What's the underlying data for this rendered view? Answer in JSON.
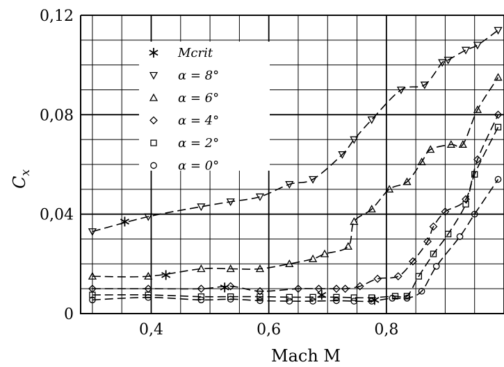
{
  "chart_data": {
    "type": "scatter",
    "xlabel": "Mach M",
    "ylabel": "C_x",
    "xlim": [
      0.28,
      1.0
    ],
    "ylim": [
      0,
      0.12
    ],
    "x_ticks": [
      0.4,
      0.6,
      0.8
    ],
    "x_tick_labels": [
      "0,4",
      "0,6",
      "0,8"
    ],
    "y_ticks": [
      0,
      0.04,
      0.08,
      0.12
    ],
    "y_tick_labels": [
      "0",
      "0,04",
      "0,08",
      "0,12"
    ],
    "grid": true,
    "legend_position": "top-left",
    "series": [
      {
        "name": "M_crit",
        "legend_label": "Mcrit",
        "marker": "asterisk",
        "line": false,
        "x": [
          0.355,
          0.425,
          0.525,
          0.69,
          0.78
        ],
        "y": [
          0.037,
          0.0155,
          0.0105,
          0.0075,
          0.0055
        ]
      },
      {
        "name": "α = 8°",
        "legend_label": "α = 8°",
        "marker": "triangle-down",
        "line": true,
        "x": [
          0.3,
          0.395,
          0.485,
          0.535,
          0.585,
          0.635,
          0.675,
          0.725,
          0.745,
          0.775,
          0.825,
          0.865,
          0.895,
          0.905,
          0.935,
          0.955,
          0.99
        ],
        "y": [
          0.033,
          0.039,
          0.043,
          0.045,
          0.047,
          0.052,
          0.054,
          0.064,
          0.07,
          0.078,
          0.09,
          0.092,
          0.101,
          0.102,
          0.106,
          0.108,
          0.114
        ]
      },
      {
        "name": "α = 6°",
        "legend_label": "α = 6°",
        "marker": "triangle-up",
        "line": true,
        "x": [
          0.3,
          0.395,
          0.485,
          0.535,
          0.585,
          0.635,
          0.675,
          0.695,
          0.735,
          0.745,
          0.775,
          0.805,
          0.835,
          0.86,
          0.875,
          0.91,
          0.93,
          0.955,
          0.99
        ],
        "y": [
          0.015,
          0.015,
          0.018,
          0.018,
          0.018,
          0.02,
          0.022,
          0.024,
          0.027,
          0.037,
          0.042,
          0.05,
          0.053,
          0.061,
          0.066,
          0.068,
          0.068,
          0.082,
          0.095
        ]
      },
      {
        "name": "α = 4°",
        "legend_label": "α = 4°",
        "marker": "diamond",
        "line": true,
        "x": [
          0.3,
          0.395,
          0.485,
          0.535,
          0.585,
          0.65,
          0.685,
          0.715,
          0.73,
          0.755,
          0.785,
          0.82,
          0.845,
          0.87,
          0.88,
          0.9,
          0.935,
          0.955,
          0.99
        ],
        "y": [
          0.01,
          0.01,
          0.01,
          0.011,
          0.009,
          0.01,
          0.01,
          0.01,
          0.01,
          0.011,
          0.014,
          0.015,
          0.021,
          0.029,
          0.035,
          0.041,
          0.046,
          0.062,
          0.08
        ]
      },
      {
        "name": "α = 2°",
        "legend_label": "α = 2°",
        "marker": "square",
        "line": true,
        "x": [
          0.3,
          0.395,
          0.485,
          0.535,
          0.585,
          0.635,
          0.675,
          0.715,
          0.745,
          0.775,
          0.815,
          0.835,
          0.855,
          0.88,
          0.905,
          0.935,
          0.95,
          0.99
        ],
        "y": [
          0.0075,
          0.0075,
          0.0068,
          0.0068,
          0.0068,
          0.0066,
          0.0066,
          0.0066,
          0.0064,
          0.0064,
          0.007,
          0.007,
          0.015,
          0.024,
          0.032,
          0.044,
          0.056,
          0.075
        ]
      },
      {
        "name": "α = 0°",
        "legend_label": "α = 0°",
        "marker": "circle",
        "line": true,
        "x": [
          0.3,
          0.395,
          0.485,
          0.535,
          0.585,
          0.635,
          0.675,
          0.715,
          0.745,
          0.775,
          0.81,
          0.835,
          0.86,
          0.885,
          0.925,
          0.95,
          0.99
        ],
        "y": [
          0.0055,
          0.0065,
          0.0055,
          0.0058,
          0.0052,
          0.005,
          0.005,
          0.0052,
          0.005,
          0.005,
          0.0062,
          0.0062,
          0.009,
          0.019,
          0.031,
          0.04,
          0.054
        ]
      }
    ]
  }
}
